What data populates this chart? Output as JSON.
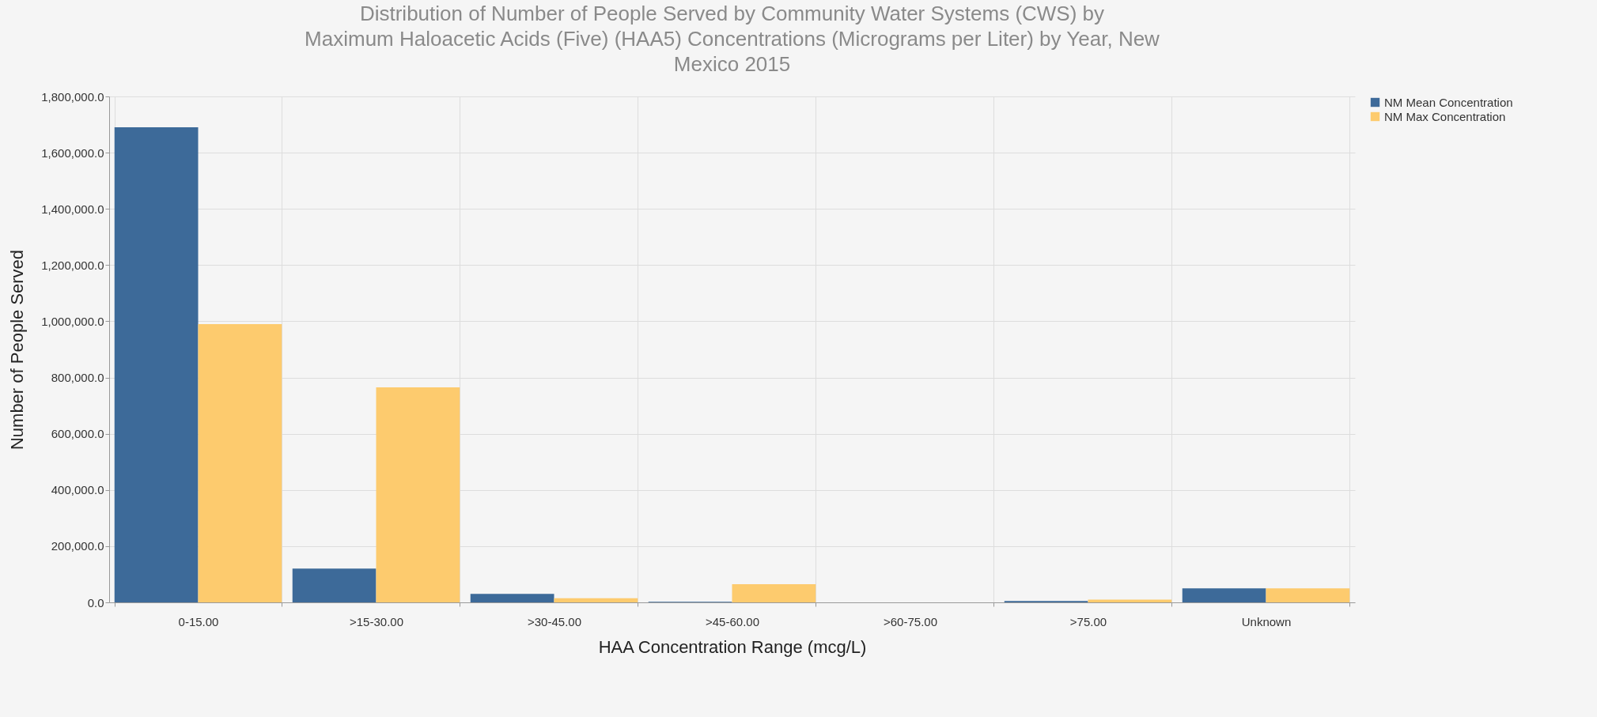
{
  "chart_data": {
    "type": "bar",
    "title": [
      "Distribution of Number of People Served by Community Water Systems (CWS) by",
      "Maximum Haloacetic Acids (Five) (HAA5) Concentrations (Micrograms per Liter) by Year, New",
      "Mexico 2015"
    ],
    "xlabel": "HAA Concentration Range (mcg/L)",
    "ylabel": "Number of People Served",
    "categories": [
      "0-15.00",
      ">15-30.00",
      ">30-45.00",
      ">45-60.00",
      ">60-75.00",
      ">75.00",
      "Unknown"
    ],
    "series": [
      {
        "name": "NM Mean Concentration",
        "color": "#3d6a99",
        "values": [
          1690000,
          120000,
          30000,
          2000,
          0,
          5000,
          50000
        ]
      },
      {
        "name": "NM Max Concentration",
        "color": "#fdcb6e",
        "values": [
          990000,
          765000,
          15000,
          65000,
          0,
          10000,
          50000
        ]
      }
    ],
    "ylim": [
      0,
      1800000
    ],
    "yticks": [
      {
        "value": 0,
        "label": "0.0"
      },
      {
        "value": 200000,
        "label": "200,000.0"
      },
      {
        "value": 400000,
        "label": "400,000.0"
      },
      {
        "value": 600000,
        "label": "600,000.0"
      },
      {
        "value": 800000,
        "label": "800,000.0"
      },
      {
        "value": 1000000,
        "label": "1,000,000.0"
      },
      {
        "value": 1200000,
        "label": "1,200,000.0"
      },
      {
        "value": 1400000,
        "label": "1,400,000.0"
      },
      {
        "value": 1600000,
        "label": "1,600,000.0"
      },
      {
        "value": 1800000,
        "label": "1,800,000.0"
      }
    ],
    "grid": true,
    "legend": "right"
  }
}
